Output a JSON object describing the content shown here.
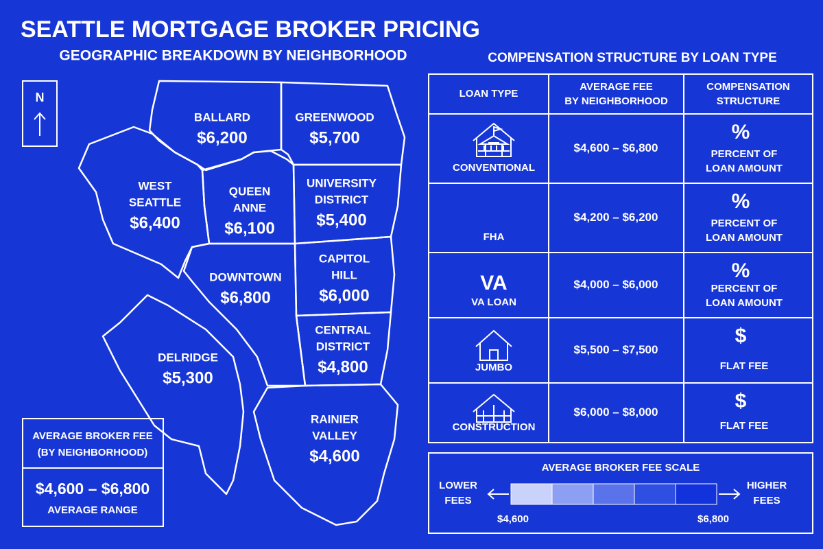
{
  "header": {
    "title": "SEATTLE MORTGAGE BROKER PRICING",
    "subtitle": "GEOGRAPHIC BREAKDOWN BY NEIGHBORHOOD"
  },
  "compass": "N",
  "neighborhoods": [
    {
      "name": [
        "BALLARD"
      ],
      "fee": "$6,200"
    },
    {
      "name": [
        "GREENWOOD"
      ],
      "fee": "$5,700"
    },
    {
      "name": [
        "WEST",
        "SEATTLE"
      ],
      "fee": "$6,400"
    },
    {
      "name": [
        "QUEEN",
        "ANNE"
      ],
      "fee": "$6,100"
    },
    {
      "name": [
        "UNIVERSITY",
        "DISTRICT"
      ],
      "fee": "$5,400"
    },
    {
      "name": [
        "DOWNTOWN"
      ],
      "fee": "$6,800"
    },
    {
      "name": [
        "CAPITOL",
        "HILL"
      ],
      "fee": "$6,000"
    },
    {
      "name": [
        "CENTRAL",
        "DISTRICT"
      ],
      "fee": "$4,800"
    },
    {
      "name": [
        "DELRIDGE"
      ],
      "fee": "$5,300"
    },
    {
      "name": [
        "RAINIER",
        "VALLEY"
      ],
      "fee": "$4,600"
    }
  ],
  "summary": {
    "title": [
      "AVERAGE BROKER FEE",
      "(BY NEIGHBORHOOD)"
    ],
    "range": "$4,600 – $6,800",
    "caption": "AVERAGE RANGE"
  },
  "table": {
    "title": "COMPENSATION STRUCTURE BY LOAN TYPE",
    "columns": [
      [
        "LOAN TYPE"
      ],
      [
        "AVERAGE FEE",
        "BY NEIGHBORHOOD"
      ],
      [
        "COMPENSATION",
        "STRUCTURE"
      ]
    ],
    "rows": [
      {
        "loan_type": "CONVENTIONAL",
        "fee_range": "$4,600 – $6,800",
        "symbol": "%",
        "structure": [
          "PERCENT OF",
          "LOAN AMOUNT"
        ]
      },
      {
        "loan_type": "FHA",
        "fee_range": "$4,200 – $6,200",
        "symbol": "%",
        "structure": [
          "PERCENT OF",
          "LOAN AMOUNT"
        ]
      },
      {
        "icon": "VA",
        "loan_type": "VA LOAN",
        "fee_range": "$4,000 – $6,000",
        "symbol": "%",
        "structure": [
          "PERCENT OF",
          "LOAN AMOUNT"
        ]
      },
      {
        "loan_type": "JUMBO",
        "fee_range": "$5,500 – $7,500",
        "symbol": "$",
        "structure": [
          "FLAT FEE"
        ]
      },
      {
        "loan_type": "CONSTRUCTION",
        "fee_range": "$6,000 – $8,000",
        "symbol": "$",
        "structure": [
          "FLAT FEE"
        ]
      }
    ]
  },
  "scale": {
    "title": "AVERAGE BROKER FEE SCALE",
    "low": [
      "LOWER",
      "FEES"
    ],
    "high": [
      "HIGHER",
      "FEES"
    ],
    "min": "$4,600",
    "max": "$6,800"
  }
}
